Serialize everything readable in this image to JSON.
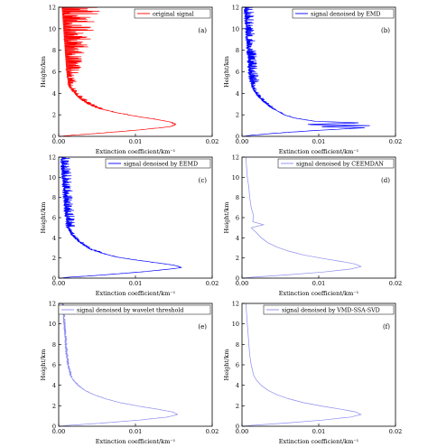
{
  "chart_data": [
    {
      "type": "line",
      "panel_label": "(a)",
      "legend": "original signal",
      "color": "#ff0000",
      "xlabel": "Extinction coefficient/km⁻¹",
      "ylabel": "Height/km",
      "xlim": [
        0,
        0.02
      ],
      "ylim": [
        0,
        12
      ],
      "xticks": [
        "0.00",
        "0.01",
        "0.02"
      ],
      "yticks": [
        "0",
        "2",
        "4",
        "6",
        "8",
        "10",
        "12"
      ],
      "legend_position": "top-right",
      "grid": false,
      "series": [
        {
          "noise": "high",
          "points": [
            [
              0.0,
              0.0
            ],
            [
              0.0015,
              0.1
            ],
            [
              0.0055,
              0.3
            ],
            [
              0.0105,
              0.6
            ],
            [
              0.0145,
              0.9
            ],
            [
              0.0152,
              1.1
            ],
            [
              0.0145,
              1.35
            ],
            [
              0.0125,
              1.6
            ],
            [
              0.0098,
              1.9
            ],
            [
              0.0075,
              2.2
            ],
            [
              0.0052,
              2.6
            ],
            [
              0.0038,
              3.0
            ],
            [
              0.0028,
              3.5
            ],
            [
              0.0021,
              4.0
            ],
            [
              0.0015,
              4.5
            ],
            [
              0.0012,
              5.0
            ],
            [
              0.001,
              6.0
            ],
            [
              0.0009,
              7.0
            ],
            [
              0.0008,
              8.0
            ],
            [
              0.0007,
              9.0
            ],
            [
              0.0006,
              10.0
            ],
            [
              0.0005,
              11.0
            ],
            [
              0.0004,
              12.0
            ]
          ]
        }
      ]
    },
    {
      "type": "line",
      "panel_label": "(b)",
      "legend": "signal denoised by EMD",
      "color": "#0000ff",
      "xlabel": "Extinction coefficient/km⁻¹",
      "ylabel": "Height/km",
      "xlim": [
        0,
        0.02
      ],
      "ylim": [
        0,
        12
      ],
      "xticks": [
        "0.00",
        "0.01",
        "0.02"
      ],
      "yticks": [
        "0",
        "2",
        "4",
        "6",
        "8",
        "10",
        "12"
      ],
      "legend_position": "top-right",
      "grid": false,
      "series": [
        {
          "noise": "medium",
          "points": [
            [
              0.0,
              0.0
            ],
            [
              0.0012,
              0.1
            ],
            [
              0.0045,
              0.3
            ],
            [
              0.0085,
              0.5
            ],
            [
              0.016,
              0.8
            ],
            [
              0.0095,
              0.9
            ],
            [
              0.0165,
              1.0
            ],
            [
              0.0078,
              1.1
            ],
            [
              0.0155,
              1.25
            ],
            [
              0.0095,
              1.4
            ],
            [
              0.0068,
              1.7
            ],
            [
              0.0055,
              2.0
            ],
            [
              0.0045,
              2.4
            ],
            [
              0.0035,
              2.8
            ],
            [
              0.0027,
              3.3
            ],
            [
              0.002,
              3.8
            ],
            [
              0.0015,
              4.3
            ],
            [
              0.0012,
              5.0
            ],
            [
              0.001,
              6.0
            ],
            [
              0.0009,
              7.0
            ],
            [
              0.0008,
              8.0
            ],
            [
              0.0007,
              9.0
            ],
            [
              0.0006,
              10.0
            ],
            [
              0.0005,
              11.0
            ],
            [
              0.0004,
              12.0
            ]
          ]
        }
      ]
    },
    {
      "type": "line",
      "panel_label": "(c)",
      "legend": "signal denoised by EEMD",
      "color": "#0000ff",
      "xlabel": "Extinction coefficient/km⁻¹",
      "ylabel": "Height/km",
      "xlim": [
        0,
        0.02
      ],
      "ylim": [
        0,
        12
      ],
      "xticks": [
        "0.00",
        "0.01",
        "0.02"
      ],
      "yticks": [
        "0",
        "2",
        "4",
        "6",
        "8",
        "10",
        "12"
      ],
      "legend_position": "top-right",
      "grid": false,
      "series": [
        {
          "noise": "medium",
          "points": [
            [
              0.0,
              0.0
            ],
            [
              0.0015,
              0.1
            ],
            [
              0.0055,
              0.3
            ],
            [
              0.0105,
              0.6
            ],
            [
              0.0145,
              0.9
            ],
            [
              0.016,
              1.05
            ],
            [
              0.0152,
              1.25
            ],
            [
              0.013,
              1.5
            ],
            [
              0.01,
              1.8
            ],
            [
              0.0075,
              2.1
            ],
            [
              0.0055,
              2.5
            ],
            [
              0.004,
              2.9
            ],
            [
              0.003,
              3.4
            ],
            [
              0.0022,
              3.9
            ],
            [
              0.0016,
              4.4
            ],
            [
              0.0012,
              5.0
            ],
            [
              0.001,
              6.0
            ],
            [
              0.0009,
              7.0
            ],
            [
              0.0008,
              8.0
            ],
            [
              0.0007,
              9.0
            ],
            [
              0.0006,
              10.0
            ],
            [
              0.0005,
              11.0
            ],
            [
              0.0004,
              12.0
            ]
          ]
        }
      ]
    },
    {
      "type": "line",
      "panel_label": "(d)",
      "legend": "signal denoised by CEEMDAN",
      "color": "#8c8cf0",
      "xlabel": "Extinction coefficient/km⁻¹",
      "ylabel": "Height/km",
      "xlim": [
        0,
        0.02
      ],
      "ylim": [
        0,
        12
      ],
      "xticks": [
        "0.00",
        "0.01",
        "0.02"
      ],
      "yticks": [
        "0",
        "2",
        "4",
        "6",
        "8",
        "10",
        "12"
      ],
      "legend_position": "top-right",
      "grid": false,
      "series": [
        {
          "noise": "none",
          "points": [
            [
              0.0,
              0.0
            ],
            [
              0.0015,
              0.1
            ],
            [
              0.0055,
              0.3
            ],
            [
              0.0105,
              0.6
            ],
            [
              0.0142,
              0.9
            ],
            [
              0.0155,
              1.15
            ],
            [
              0.0148,
              1.4
            ],
            [
              0.013,
              1.65
            ],
            [
              0.0105,
              1.95
            ],
            [
              0.008,
              2.3
            ],
            [
              0.006,
              2.7
            ],
            [
              0.0045,
              3.1
            ],
            [
              0.0034,
              3.5
            ],
            [
              0.0025,
              4.0
            ],
            [
              0.0019,
              4.5
            ],
            [
              0.0012,
              5.0
            ],
            [
              0.0028,
              5.3
            ],
            [
              0.0014,
              5.6
            ],
            [
              0.0015,
              6.2
            ],
            [
              0.0012,
              7.0
            ],
            [
              0.001,
              8.0
            ],
            [
              0.0009,
              9.0
            ],
            [
              0.0007,
              10.0
            ],
            [
              0.0006,
              11.0
            ],
            [
              0.0005,
              12.0
            ]
          ]
        }
      ]
    },
    {
      "type": "line",
      "panel_label": "(e)",
      "legend": "signal denoised by wavelet threshold",
      "color": "#8c8cf0",
      "xlabel": "Extinction coefficient/km⁻¹",
      "ylabel": "Height/km",
      "xlim": [
        0,
        0.02
      ],
      "ylim": [
        0,
        12
      ],
      "xticks": [
        "0.00",
        "0.01",
        "0.02"
      ],
      "yticks": [
        "0",
        "2",
        "4",
        "6",
        "8",
        "10",
        "12"
      ],
      "legend_position": "top-right",
      "grid": false,
      "series": [
        {
          "noise": "low",
          "points": [
            [
              0.0,
              0.0
            ],
            [
              0.0015,
              0.1
            ],
            [
              0.0055,
              0.3
            ],
            [
              0.0105,
              0.6
            ],
            [
              0.0142,
              0.9
            ],
            [
              0.0155,
              1.15
            ],
            [
              0.0148,
              1.4
            ],
            [
              0.013,
              1.65
            ],
            [
              0.0105,
              1.95
            ],
            [
              0.008,
              2.3
            ],
            [
              0.006,
              2.7
            ],
            [
              0.0045,
              3.1
            ],
            [
              0.0034,
              3.5
            ],
            [
              0.0025,
              4.0
            ],
            [
              0.0019,
              4.5
            ],
            [
              0.0015,
              5.0
            ],
            [
              0.0012,
              6.0
            ],
            [
              0.001,
              7.0
            ],
            [
              0.0009,
              8.0
            ],
            [
              0.0008,
              9.0
            ],
            [
              0.0007,
              10.0
            ],
            [
              0.0006,
              11.0
            ],
            [
              0.0005,
              12.0
            ]
          ]
        }
      ]
    },
    {
      "type": "line",
      "panel_label": "(f)",
      "legend": "signal denoised by VMD-SSA-SVD",
      "color": "#8c8cf0",
      "xlabel": "Extinction coefficient/km⁻¹",
      "ylabel": "Height/km",
      "xlim": [
        0,
        0.02
      ],
      "ylim": [
        0,
        12
      ],
      "xticks": [
        "0.00",
        "0.01",
        "0.02"
      ],
      "yticks": [
        "0",
        "2",
        "4",
        "6",
        "8",
        "10",
        "12"
      ],
      "legend_position": "top-right",
      "grid": false,
      "series": [
        {
          "noise": "none",
          "points": [
            [
              0.0,
              0.0
            ],
            [
              0.0015,
              0.1
            ],
            [
              0.0055,
              0.3
            ],
            [
              0.0105,
              0.6
            ],
            [
              0.0142,
              0.9
            ],
            [
              0.0155,
              1.15
            ],
            [
              0.0148,
              1.4
            ],
            [
              0.013,
              1.65
            ],
            [
              0.0105,
              1.95
            ],
            [
              0.008,
              2.3
            ],
            [
              0.006,
              2.7
            ],
            [
              0.0045,
              3.1
            ],
            [
              0.0034,
              3.5
            ],
            [
              0.0025,
              4.0
            ],
            [
              0.0019,
              4.5
            ],
            [
              0.0015,
              5.0
            ],
            [
              0.0012,
              6.0
            ],
            [
              0.001,
              7.0
            ],
            [
              0.0009,
              8.0
            ],
            [
              0.0008,
              9.0
            ],
            [
              0.0007,
              10.0
            ],
            [
              0.0006,
              11.0
            ],
            [
              0.0005,
              12.0
            ]
          ]
        }
      ]
    }
  ]
}
